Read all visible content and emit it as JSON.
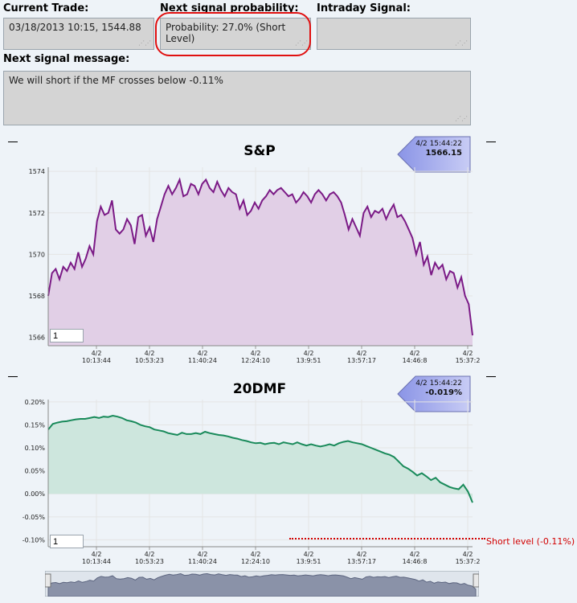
{
  "fields": {
    "current_trade": {
      "label": "Current Trade:",
      "value": "03/18/2013 10:15, 1544.88"
    },
    "next_signal_probability": {
      "label": "Next signal probability:",
      "value": "Probability: 27.0% (Short Level)"
    },
    "intraday_signal": {
      "label": "Intraday Signal:",
      "value": ""
    },
    "next_signal_message": {
      "label": "Next signal message:",
      "value": "We will short if  the MF crosses below -0.11%"
    }
  },
  "colors": {
    "sp_line": "#7b1a86",
    "sp_fill": "#e1cfe6",
    "mf_line": "#198a5a",
    "mf_fill": "#cde6dd",
    "short_level": "#d20000",
    "highlight": "#e01010"
  },
  "chart_data": [
    {
      "type": "area",
      "title": "S&P",
      "tooltip": {
        "time": "4/2 15:44:22",
        "value": "1566.15"
      },
      "input_value": "1",
      "ylim": [
        1565.6,
        1574.2
      ],
      "y_ticks": [
        "1574",
        "1572",
        "1570",
        "1568",
        "1566"
      ],
      "y_tick_values": [
        1574,
        1572,
        1570,
        1568,
        1566
      ],
      "x_ticks": [
        {
          "date": "4/2",
          "time": "10:13:44"
        },
        {
          "date": "4/2",
          "time": "10:53:23"
        },
        {
          "date": "4/2",
          "time": "11:40:24"
        },
        {
          "date": "4/2",
          "time": "12:24:10"
        },
        {
          "date": "4/2",
          "time": "13:9:51"
        },
        {
          "date": "4/2",
          "time": "13:57:17"
        },
        {
          "date": "4/2",
          "time": "14:46:8"
        },
        {
          "date": "4/2",
          "time": "15:37:2"
        }
      ],
      "values": [
        1568.0,
        1569.1,
        1569.3,
        1568.8,
        1569.4,
        1569.2,
        1569.6,
        1569.3,
        1570.1,
        1569.4,
        1569.8,
        1570.4,
        1570.0,
        1571.6,
        1572.3,
        1571.9,
        1572.0,
        1572.6,
        1571.2,
        1571.0,
        1571.2,
        1571.7,
        1571.4,
        1570.5,
        1571.8,
        1571.9,
        1570.9,
        1571.3,
        1570.6,
        1571.7,
        1572.3,
        1572.9,
        1573.3,
        1572.9,
        1573.2,
        1573.6,
        1572.8,
        1572.9,
        1573.4,
        1573.3,
        1572.9,
        1573.4,
        1573.6,
        1573.2,
        1573.0,
        1573.5,
        1573.1,
        1572.8,
        1573.2,
        1573.0,
        1572.9,
        1572.2,
        1572.6,
        1571.9,
        1572.1,
        1572.5,
        1572.2,
        1572.6,
        1572.8,
        1573.1,
        1572.9,
        1573.1,
        1573.2,
        1573.0,
        1572.8,
        1572.9,
        1572.5,
        1572.7,
        1573.0,
        1572.8,
        1572.5,
        1572.9,
        1573.1,
        1572.9,
        1572.6,
        1572.9,
        1573.0,
        1572.8,
        1572.5,
        1571.9,
        1571.2,
        1571.7,
        1571.3,
        1570.9,
        1572.0,
        1572.3,
        1571.8,
        1572.1,
        1572.0,
        1572.2,
        1571.7,
        1572.1,
        1572.4,
        1571.8,
        1571.9,
        1571.6,
        1571.2,
        1570.8,
        1570.0,
        1570.6,
        1569.5,
        1569.9,
        1569.0,
        1569.6,
        1569.3,
        1569.5,
        1568.8,
        1569.2,
        1569.1,
        1568.4,
        1568.9,
        1568.0,
        1567.6,
        1566.1
      ]
    },
    {
      "type": "area",
      "title": "20DMF",
      "tooltip": {
        "time": "4/2 15:44:22",
        "value": "-0.019%"
      },
      "input_value": "1",
      "ylim": [
        -0.115,
        0.205
      ],
      "y_ticks": [
        "0.20%",
        "0.15%",
        "0.10%",
        "0.05%",
        "0.00%",
        "-0.05%",
        "-0.10%"
      ],
      "y_tick_values": [
        0.2,
        0.15,
        0.1,
        0.05,
        0.0,
        -0.05,
        -0.1
      ],
      "x_ticks": [
        {
          "date": "4/2",
          "time": "10:13:44"
        },
        {
          "date": "4/2",
          "time": "10:53:23"
        },
        {
          "date": "4/2",
          "time": "11:40:24"
        },
        {
          "date": "4/2",
          "time": "12:24:10"
        },
        {
          "date": "4/2",
          "time": "13:9:51"
        },
        {
          "date": "4/2",
          "time": "13:57:17"
        },
        {
          "date": "4/2",
          "time": "14:46:8"
        },
        {
          "date": "4/2",
          "time": "15:37:2"
        }
      ],
      "short_level_value": -0.11,
      "short_level_label": "Short level (-0.11%)",
      "values": [
        0.14,
        0.152,
        0.155,
        0.157,
        0.158,
        0.16,
        0.162,
        0.163,
        0.163,
        0.165,
        0.167,
        0.165,
        0.168,
        0.167,
        0.17,
        0.168,
        0.165,
        0.16,
        0.158,
        0.155,
        0.15,
        0.147,
        0.145,
        0.14,
        0.138,
        0.136,
        0.132,
        0.13,
        0.128,
        0.133,
        0.13,
        0.13,
        0.132,
        0.13,
        0.135,
        0.132,
        0.13,
        0.128,
        0.127,
        0.125,
        0.122,
        0.12,
        0.117,
        0.115,
        0.112,
        0.11,
        0.111,
        0.108,
        0.11,
        0.111,
        0.108,
        0.112,
        0.11,
        0.108,
        0.112,
        0.108,
        0.105,
        0.108,
        0.105,
        0.103,
        0.105,
        0.108,
        0.105,
        0.11,
        0.113,
        0.115,
        0.112,
        0.11,
        0.108,
        0.104,
        0.1,
        0.096,
        0.092,
        0.088,
        0.085,
        0.08,
        0.07,
        0.06,
        0.055,
        0.048,
        0.04,
        0.045,
        0.038,
        0.03,
        0.035,
        0.025,
        0.02,
        0.015,
        0.012,
        0.01,
        0.02,
        0.005,
        -0.019
      ]
    }
  ]
}
